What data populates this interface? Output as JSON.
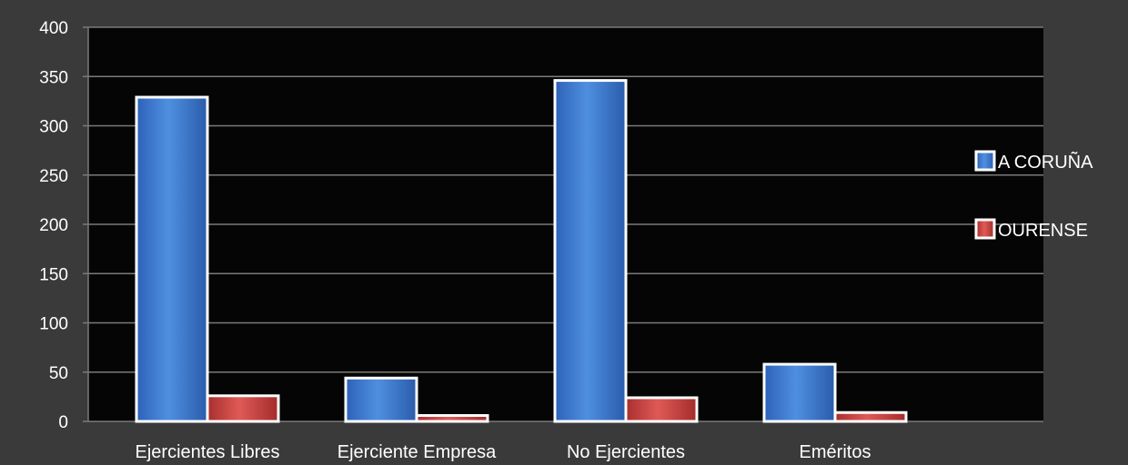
{
  "chart_data": {
    "type": "bar",
    "title": "",
    "xlabel": "",
    "ylabel": "",
    "categories": [
      "Ejercientes Libres",
      "Ejerciente Empresa",
      "No Ejercientes",
      "Eméritos"
    ],
    "series": [
      {
        "name": "A CORUÑA",
        "values": [
          329,
          44,
          346,
          58
        ],
        "color": "#3b78cf"
      },
      {
        "name": "OURENSE",
        "values": [
          26,
          6,
          24,
          9
        ],
        "color": "#c8403e"
      }
    ],
    "yticks": [
      "0",
      "50",
      "100",
      "150",
      "200",
      "250",
      "300",
      "350",
      "400"
    ],
    "ylim": [
      0,
      400
    ],
    "grid": true,
    "legend_position": "right",
    "colors": {
      "background": "#3a3a3a",
      "plot_area": "#050505",
      "gridline": "#7a7a7a"
    }
  }
}
